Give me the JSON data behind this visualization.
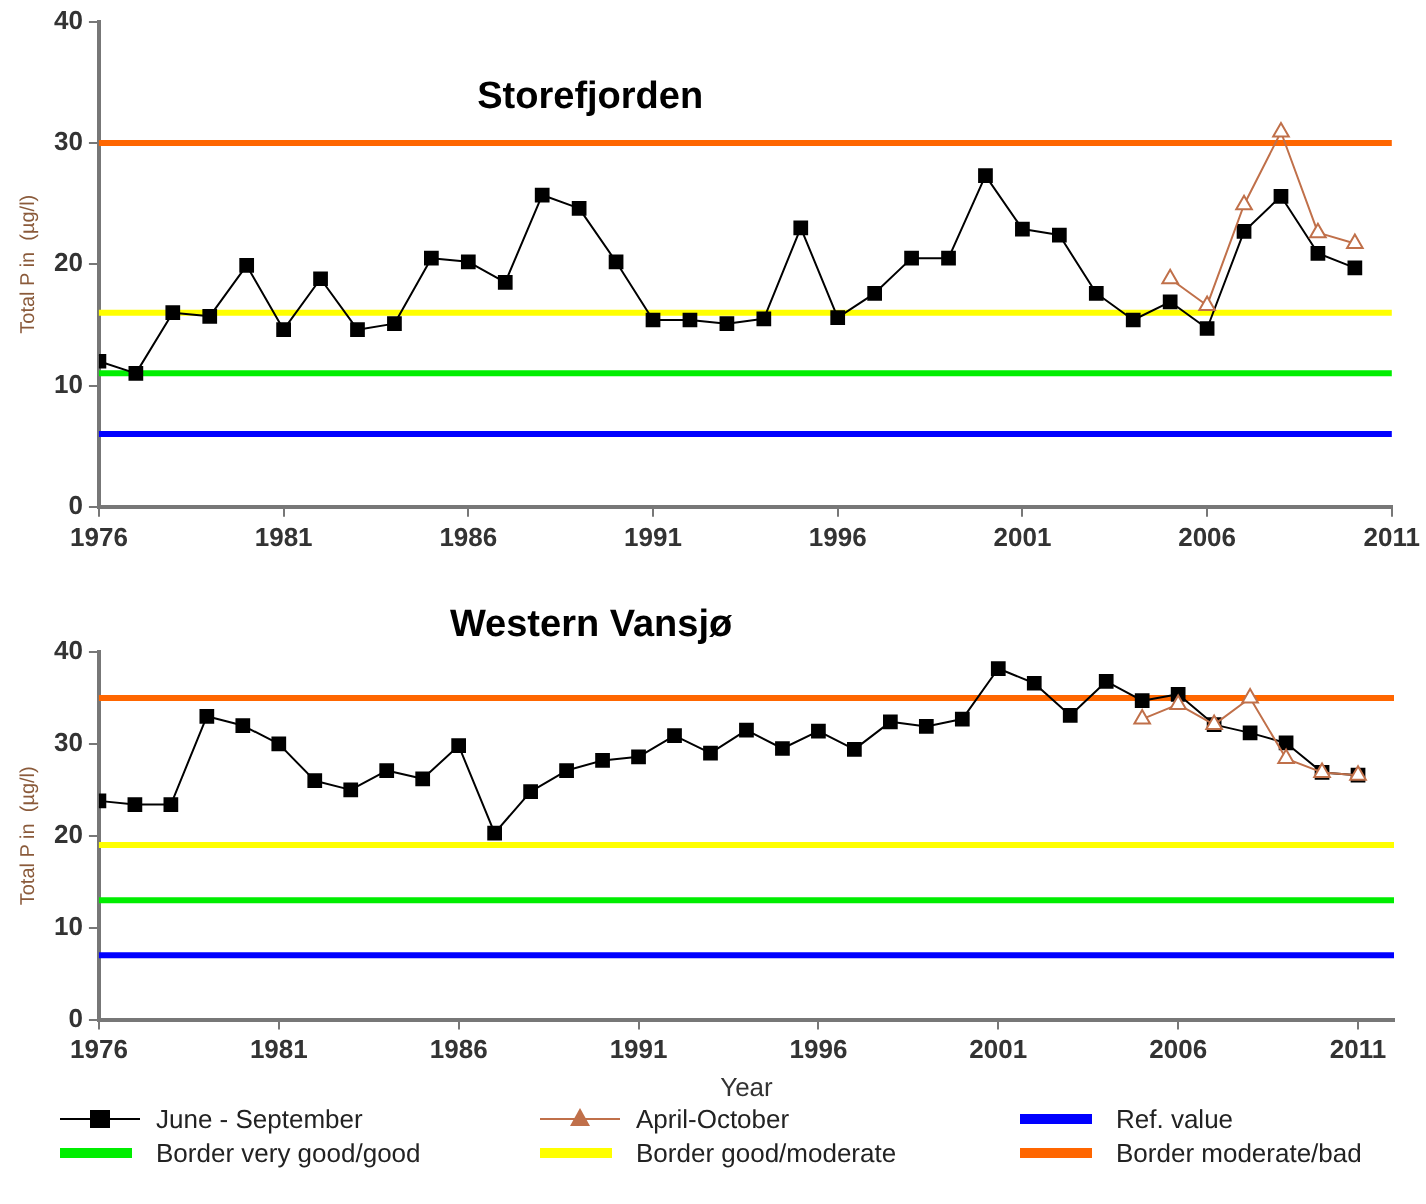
{
  "chart_data": [
    {
      "type": "line",
      "title": "Storefjorden",
      "ylabel": "Total P in  (µg/l)",
      "xlim": [
        1976,
        2011
      ],
      "xticks": [
        1976,
        1981,
        1986,
        1991,
        1996,
        2001,
        2006,
        2011
      ],
      "ylim": [
        0,
        40
      ],
      "yticks": [
        0,
        10,
        20,
        30,
        40
      ],
      "grid": false,
      "legend": false,
      "series": [
        {
          "color": "#000000",
          "marker": "square",
          "x": [
            1976,
            1977,
            1978,
            1979,
            1980,
            1981,
            1982,
            1983,
            1984,
            1985,
            1986,
            1987,
            1988,
            1989,
            1990,
            1991,
            1992,
            1993,
            1994,
            1995,
            1996,
            1997,
            1998,
            1999,
            2000,
            2001,
            2002,
            2003,
            2004,
            2005,
            2006,
            2007,
            2008,
            2009,
            2010
          ],
          "values": [
            12.0,
            11.0,
            16.0,
            15.7,
            19.9,
            14.6,
            18.8,
            14.6,
            15.1,
            20.5,
            20.2,
            18.5,
            25.7,
            24.6,
            20.2,
            15.4,
            15.4,
            15.1,
            15.5,
            23.0,
            15.6,
            17.6,
            20.5,
            20.5,
            27.3,
            22.9,
            22.4,
            17.6,
            15.4,
            16.9,
            14.7,
            22.7,
            25.6,
            20.9,
            19.7
          ]
        },
        {
          "color": "#c0704a",
          "marker": "triangle",
          "x": [
            2005,
            2006,
            2007,
            2008,
            2009,
            2010
          ],
          "values": [
            18.8,
            16.6,
            24.9,
            30.9,
            22.6,
            21.7
          ]
        }
      ],
      "ref_lines": [
        {
          "axis": "y",
          "value": 6,
          "color": "#0000ff"
        },
        {
          "axis": "y",
          "value": 11,
          "color": "#00ee00"
        },
        {
          "axis": "y",
          "value": 16,
          "color": "#ffff00"
        },
        {
          "axis": "y",
          "value": 30,
          "color": "#ff6600"
        }
      ]
    },
    {
      "type": "line",
      "title": "Western Vansjø",
      "xlabel": "Year",
      "ylabel": "Total P in  (µg/l)",
      "xlim": [
        1976,
        2012
      ],
      "xticks": [
        1976,
        1981,
        1986,
        1991,
        1996,
        2001,
        2006,
        2011
      ],
      "ylim": [
        0,
        40
      ],
      "yticks": [
        0,
        10,
        20,
        30,
        40
      ],
      "grid": false,
      "legend": "bottom",
      "series": [
        {
          "name": "June - September",
          "color": "#000000",
          "marker": "square",
          "x": [
            1976,
            1977,
            1978,
            1979,
            1980,
            1981,
            1982,
            1983,
            1984,
            1985,
            1986,
            1987,
            1988,
            1989,
            1990,
            1991,
            1992,
            1993,
            1994,
            1995,
            1996,
            1997,
            1998,
            1999,
            2000,
            2001,
            2002,
            2003,
            2004,
            2005,
            2006,
            2007,
            2008,
            2009,
            2010,
            2011
          ],
          "values": [
            23.8,
            23.4,
            23.4,
            33.0,
            32.0,
            30.0,
            26.0,
            25.0,
            27.1,
            26.2,
            29.8,
            20.3,
            24.8,
            27.1,
            28.2,
            28.6,
            30.9,
            29.0,
            31.5,
            29.5,
            31.4,
            29.4,
            32.4,
            31.9,
            32.7,
            38.2,
            36.6,
            33.1,
            36.8,
            34.7,
            35.4,
            32.1,
            31.2,
            30.1,
            26.9,
            26.6
          ]
        },
        {
          "name": "April-October",
          "color": "#c0704a",
          "marker": "triangle",
          "x": [
            2005,
            2006,
            2007,
            2008,
            2009,
            2010,
            2011
          ],
          "values": [
            32.7,
            34.3,
            32.1,
            35.0,
            28.4,
            26.9,
            26.6
          ]
        }
      ],
      "ref_lines": [
        {
          "axis": "y",
          "value": 7,
          "label": "Ref. value",
          "color": "#0000ff"
        },
        {
          "axis": "y",
          "value": 13,
          "label": "Border very good/good",
          "color": "#00ee00"
        },
        {
          "axis": "y",
          "value": 19,
          "label": "Border good/moderate",
          "color": "#ffff00"
        },
        {
          "axis": "y",
          "value": 35,
          "label": "Border moderate/bad",
          "color": "#ff6600"
        }
      ]
    }
  ]
}
